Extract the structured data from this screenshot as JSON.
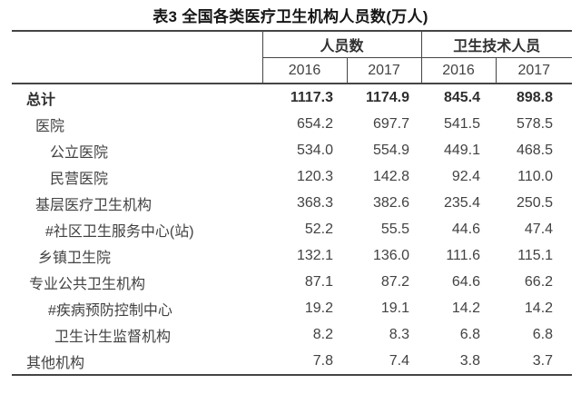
{
  "title": "表3 全国各类医疗卫生机构人员数(万人)",
  "table": {
    "col_groups": [
      {
        "label": "人员数",
        "years": [
          "2016",
          "2017"
        ]
      },
      {
        "label": "卫生技术人员",
        "years": [
          "2016",
          "2017"
        ]
      }
    ],
    "rows": [
      {
        "label": "总计",
        "indent": 0,
        "bold": true,
        "values": [
          "1117.3",
          "1174.9",
          "845.4",
          "898.8"
        ]
      },
      {
        "label": "医院",
        "indent": 1,
        "bold": false,
        "values": [
          "654.2",
          "697.7",
          "541.5",
          "578.5"
        ]
      },
      {
        "label": "公立医院",
        "indent": 2,
        "bold": false,
        "values": [
          "534.0",
          "554.9",
          "449.1",
          "468.5"
        ]
      },
      {
        "label": "民营医院",
        "indent": 2,
        "bold": false,
        "values": [
          "120.3",
          "142.8",
          "92.4",
          "110.0"
        ]
      },
      {
        "label": "基层医疗卫生机构",
        "indent": 1,
        "bold": false,
        "values": [
          "368.3",
          "382.6",
          "235.4",
          "250.5"
        ]
      },
      {
        "label": "#社区卫生服务中心(站)",
        "indent": 2,
        "bold": false,
        "values": [
          "52.2",
          "55.5",
          "44.6",
          "47.4"
        ]
      },
      {
        "label": "乡镇卫生院",
        "indent": 1,
        "bold": false,
        "values": [
          "132.1",
          "136.0",
          "111.6",
          "115.1"
        ]
      },
      {
        "label": "专业公共卫生机构",
        "indent": 1,
        "bold": false,
        "values": [
          "87.1",
          "87.2",
          "64.6",
          "66.2"
        ]
      },
      {
        "label": "#疾病预防控制中心",
        "indent": 2,
        "bold": false,
        "values": [
          "19.2",
          "19.1",
          "14.2",
          "14.2"
        ]
      },
      {
        "label": "卫生计生监督机构",
        "indent": 2,
        "bold": false,
        "values": [
          "8.2",
          "8.3",
          "6.8",
          "6.8"
        ]
      },
      {
        "label": "其他机构",
        "indent": 0,
        "bold": false,
        "values": [
          "7.8",
          "7.4",
          "3.8",
          "3.7"
        ]
      }
    ]
  },
  "chart_data": {
    "type": "table",
    "title": "表3 全国各类医疗卫生机构人员数(万人)",
    "column_groups": [
      "人员数",
      "卫生技术人员"
    ],
    "columns": [
      "人员数 2016",
      "人员数 2017",
      "卫生技术人员 2016",
      "卫生技术人员 2017"
    ],
    "rows": [
      [
        "总计",
        1117.3,
        1174.9,
        845.4,
        898.8
      ],
      [
        "医院",
        654.2,
        697.7,
        541.5,
        578.5
      ],
      [
        "公立医院",
        534.0,
        554.9,
        449.1,
        468.5
      ],
      [
        "民营医院",
        120.3,
        142.8,
        92.4,
        110.0
      ],
      [
        "基层医疗卫生机构",
        368.3,
        382.6,
        235.4,
        250.5
      ],
      [
        "#社区卫生服务中心(站)",
        52.2,
        55.5,
        44.6,
        47.4
      ],
      [
        "乡镇卫生院",
        132.1,
        136.0,
        111.6,
        115.1
      ],
      [
        "专业公共卫生机构",
        87.1,
        87.2,
        64.6,
        66.2
      ],
      [
        "#疾病预防控制中心",
        19.2,
        19.1,
        14.2,
        14.2
      ],
      [
        "卫生计生监督机构",
        8.2,
        8.3,
        6.8,
        6.8
      ],
      [
        "其他机构",
        7.8,
        7.4,
        3.8,
        3.7
      ]
    ],
    "unit": "万人"
  },
  "colors": {
    "text": "#424242",
    "title": "#161616",
    "line": "#454545",
    "background": "#ffffff"
  }
}
